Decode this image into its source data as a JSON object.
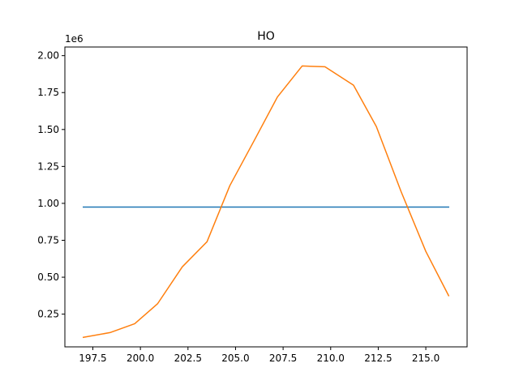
{
  "chart_data": {
    "type": "line",
    "title": "HO",
    "xlabel": "",
    "ylabel": "",
    "y_offset_label": "1e6",
    "xlim": [
      196.03,
      217.17
    ],
    "ylim": [
      0.0285,
      2.0585
    ],
    "x_ticks": [
      197.5,
      200.0,
      202.5,
      205.0,
      207.5,
      210.0,
      212.5,
      215.0
    ],
    "x_tick_labels": [
      "197.5",
      "200.0",
      "202.5",
      "205.0",
      "207.5",
      "210.0",
      "212.5",
      "215.0"
    ],
    "y_ticks": [
      0.25,
      0.5,
      0.75,
      1.0,
      1.25,
      1.5,
      1.75,
      2.0
    ],
    "y_tick_labels": [
      "0.25",
      "0.50",
      "0.75",
      "1.00",
      "1.25",
      "1.50",
      "1.75",
      "2.00"
    ],
    "grid": false,
    "series": [
      {
        "color": "#1f77b4",
        "x": [
          197.0,
          216.2
        ],
        "y": [
          0.975,
          0.975
        ]
      },
      {
        "color": "#ff7f0e",
        "x": [
          197.0,
          198.4,
          199.7,
          200.9,
          202.2,
          203.5,
          204.7,
          206.0,
          207.2,
          208.5,
          209.7,
          211.2,
          212.4,
          213.7,
          215.0,
          216.2
        ],
        "y": [
          0.093,
          0.125,
          0.185,
          0.32,
          0.57,
          0.74,
          1.12,
          1.43,
          1.72,
          1.93,
          1.925,
          1.8,
          1.52,
          1.08,
          0.675,
          0.375
        ]
      }
    ]
  }
}
